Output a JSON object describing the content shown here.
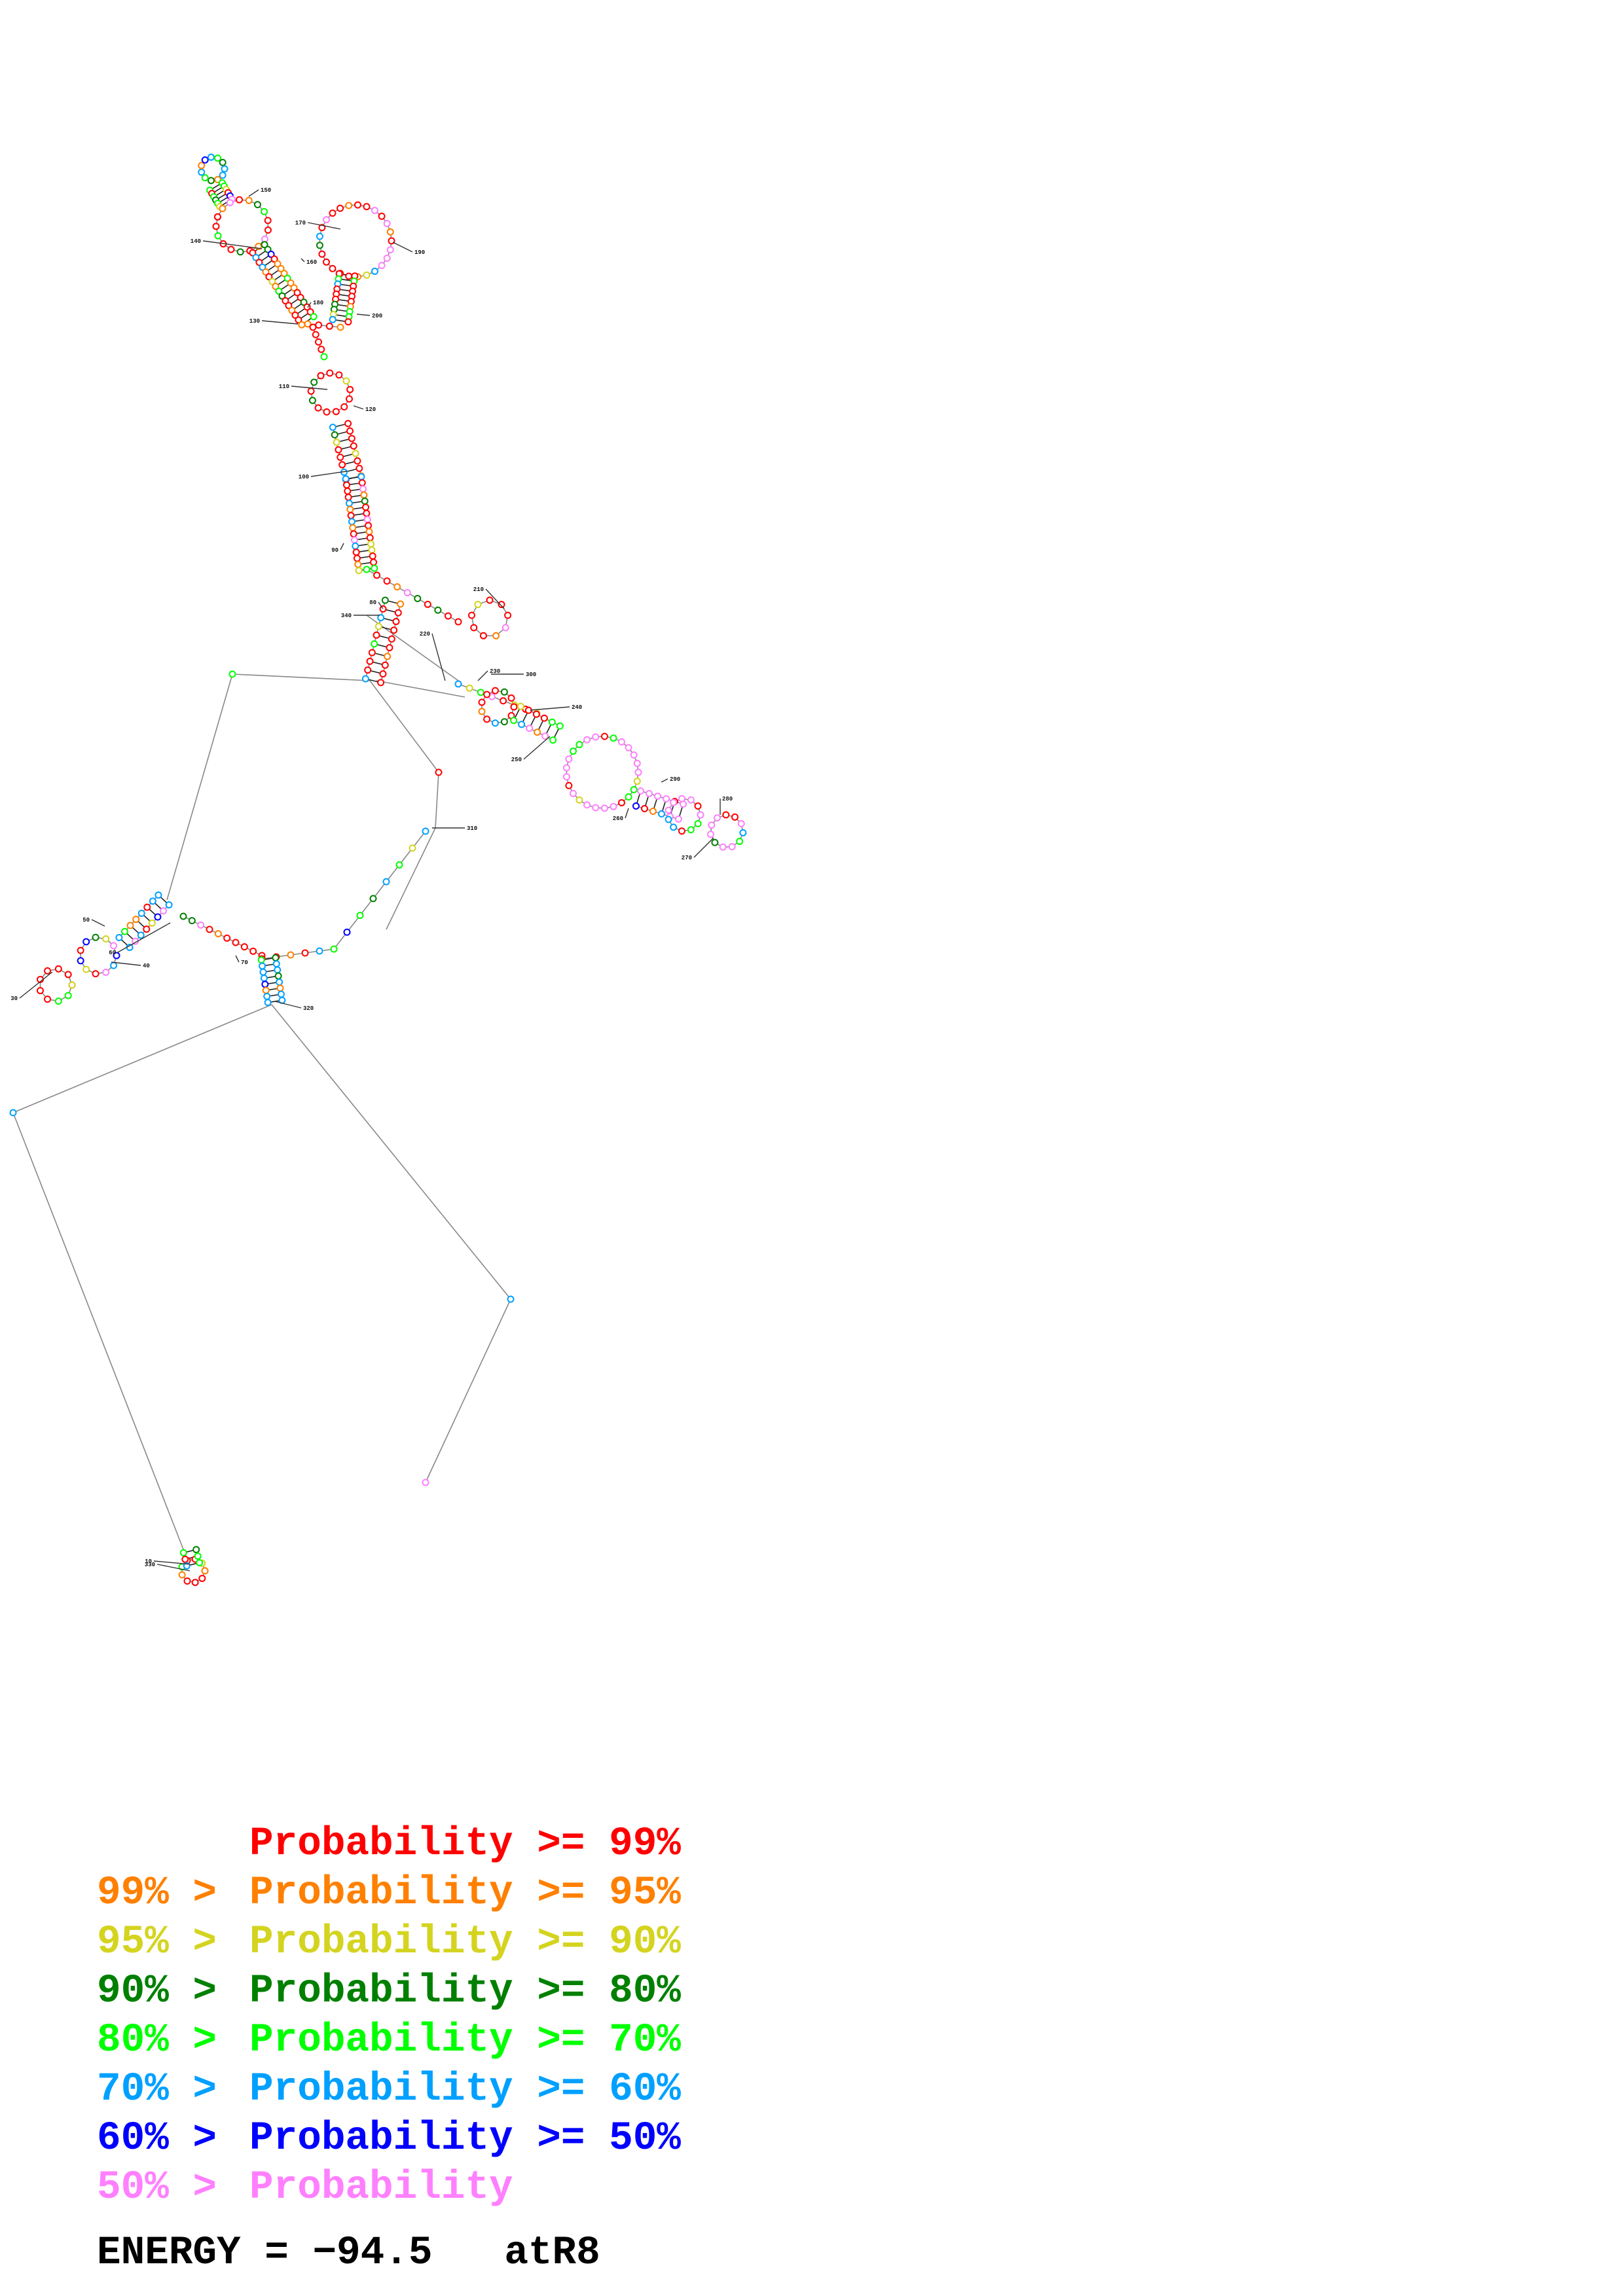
{
  "colors": {
    "p99": "#ff0000",
    "p95": "#ff8000",
    "p90": "#d4d420",
    "p80": "#008000",
    "p70": "#00ff00",
    "p60": "#00a0ff",
    "p50": "#0000ff",
    "plow": "#ff80ff"
  },
  "structure_labels": [
    "10",
    "30",
    "40",
    "50",
    "60",
    "70",
    "80",
    "90",
    "100",
    "110",
    "120",
    "130",
    "140",
    "150",
    "160",
    "170",
    "180",
    "190",
    "200",
    "210",
    "220",
    "230",
    "240",
    "250",
    "260",
    "270",
    "280",
    "290",
    "300",
    "310",
    "320",
    "330",
    "340"
  ],
  "legend": [
    {
      "range": "",
      "text": "Probability >= 99%",
      "color_key": "p99"
    },
    {
      "range": "99% > ",
      "text": "Probability >= 95%",
      "color_key": "p95"
    },
    {
      "range": "95% > ",
      "text": "Probability >= 90%",
      "color_key": "p90"
    },
    {
      "range": "90% > ",
      "text": "Probability >= 80%",
      "color_key": "p80"
    },
    {
      "range": "80% > ",
      "text": "Probability >= 70%",
      "color_key": "p70"
    },
    {
      "range": "70% > ",
      "text": "Probability >= 60%",
      "color_key": "p60"
    },
    {
      "range": "60% > ",
      "text": "Probability >= 50%",
      "color_key": "p50"
    },
    {
      "range": "50% > ",
      "text": "Probability",
      "color_key": "plow"
    }
  ],
  "footer": {
    "energy": "ENERGY = −94.5",
    "name": "atR8"
  }
}
